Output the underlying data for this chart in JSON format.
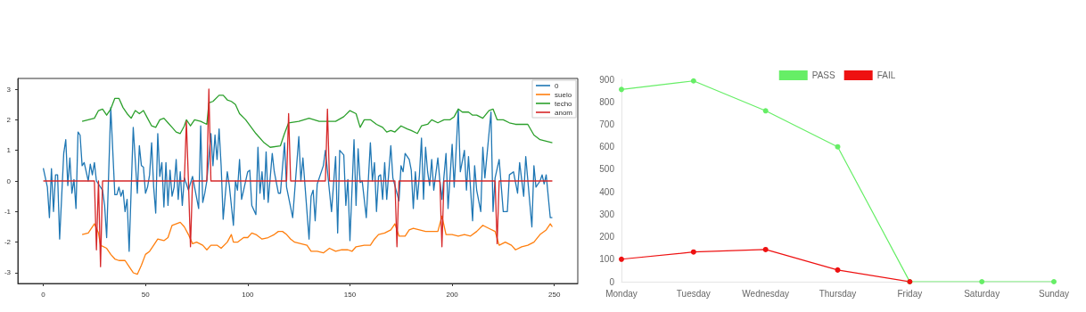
{
  "chart_data": [
    {
      "type": "line",
      "xlim": [
        -12.45,
        261.45
      ],
      "xticks": [
        0,
        50,
        100,
        150,
        200,
        250
      ],
      "ylim": [
        -3.35,
        3.35
      ],
      "yticks": [
        -3,
        -2,
        -1,
        0,
        1,
        2,
        3
      ],
      "grid": false,
      "legend": "top right",
      "marker": "none",
      "series": [
        {
          "name": "0",
          "color": "#1f77b4",
          "x": [
            0,
            2,
            3,
            4,
            5,
            6,
            7,
            8,
            10,
            11,
            12,
            13,
            14,
            15,
            16,
            17,
            18,
            19,
            20,
            22,
            23,
            24,
            25,
            26,
            29,
            30,
            31,
            33,
            35,
            36,
            37,
            38,
            39,
            40,
            41,
            42,
            44,
            46,
            47,
            48,
            49,
            50,
            51,
            52,
            53,
            54,
            55,
            56,
            57,
            58,
            59,
            60,
            61,
            62,
            63,
            64,
            65,
            66,
            67,
            68,
            69,
            71,
            73,
            76,
            77,
            78,
            79,
            80,
            82,
            83,
            84,
            85,
            86,
            87,
            88,
            90,
            91,
            93,
            94,
            95,
            96,
            97,
            98,
            100,
            101,
            102,
            104,
            105,
            106,
            107,
            108,
            109,
            110,
            112,
            113,
            115,
            116,
            118,
            119,
            122,
            125,
            126,
            127,
            130,
            131,
            132,
            133,
            134,
            137,
            138,
            140,
            141,
            143,
            144,
            145,
            147,
            148,
            149,
            150,
            152,
            153,
            154,
            155,
            156,
            158,
            160,
            161,
            162,
            163,
            164,
            165,
            166,
            167,
            168,
            170,
            171,
            174,
            175,
            176,
            177,
            179,
            180,
            181,
            182,
            183,
            184,
            185,
            186,
            187,
            188,
            189,
            190,
            191,
            193,
            194,
            195,
            197,
            198,
            200,
            201,
            203,
            204,
            206,
            207,
            208,
            210,
            211,
            212,
            214,
            215,
            216,
            219,
            220,
            221,
            223,
            225,
            227,
            228,
            230,
            232,
            233,
            235,
            236,
            239,
            240,
            241,
            243,
            244,
            245,
            246,
            248,
            249
          ],
          "values": [
            0.42,
            -0.2,
            -1.2,
            0.4,
            -1.0,
            0.2,
            0.2,
            -1.9,
            0.9,
            1.35,
            -0.15,
            0.75,
            -0.4,
            0.05,
            -0.9,
            1.6,
            1.5,
            0.5,
            0.6,
            0.0,
            0.55,
            0.2,
            0.6,
            0.0,
            -0.3,
            -0.8,
            -1.85,
            2.4,
            -0.45,
            -0.45,
            -0.2,
            -0.5,
            -0.3,
            -1.0,
            -0.6,
            -2.3,
            1.75,
            -0.4,
            1.15,
            0.5,
            0.45,
            -0.4,
            -0.2,
            0.2,
            1.25,
            -0.2,
            -1.05,
            1.55,
            0.15,
            0.6,
            -0.85,
            0.6,
            -0.8,
            0.35,
            -0.5,
            -0.2,
            0.7,
            -0.6,
            0.3,
            -0.8,
            0.1,
            -0.3,
            0.15,
            -0.9,
            1.8,
            -0.7,
            -0.4,
            0.0,
            1.55,
            0.5,
            1.5,
            0.7,
            1.7,
            0.5,
            -1.25,
            0.3,
            -0.15,
            -1.45,
            0.0,
            -0.3,
            0.7,
            -0.6,
            -0.3,
            0.3,
            0.35,
            -0.8,
            -1.1,
            1.1,
            -0.4,
            0.3,
            -0.6,
            0.95,
            -0.7,
            0.9,
            0.3,
            -0.4,
            -0.4,
            1.25,
            -0.2,
            -1.2,
            1.45,
            0.0,
            0.75,
            -1.9,
            -0.5,
            -0.3,
            -1.3,
            -0.1,
            0.5,
            1.0,
            -0.35,
            -1.0,
            0.8,
            -1.7,
            1.0,
            0.85,
            -0.8,
            0.05,
            -1.95,
            1.35,
            -0.8,
            1.05,
            -0.05,
            0.0,
            -1.2,
            1.25,
            0.0,
            0.6,
            -1.0,
            0.15,
            0.2,
            -0.6,
            0.6,
            -0.6,
            1.15,
            0.1,
            -0.65,
            0.5,
            0.3,
            0.9,
            0.7,
            0.35,
            -0.9,
            0.3,
            -0.6,
            0.2,
            1.4,
            -0.6,
            1.1,
            0.3,
            -0.15,
            0.7,
            -0.3,
            0.75,
            0.0,
            -0.6,
            0.9,
            -0.9,
            1.2,
            -0.2,
            2.35,
            0.3,
            1.0,
            -0.3,
            0.8,
            -1.3,
            0.5,
            -0.3,
            -1.0,
            1.1,
            0.1,
            2.25,
            -1.0,
            0.1,
            0.7,
            -1.0,
            -1.0,
            0.2,
            0.3,
            -0.4,
            0.6,
            -0.5,
            0.8,
            -1.5,
            0.5,
            -0.2,
            0.0,
            0.2,
            -0.1,
            0.2,
            -1.2,
            -1.2
          ]
        },
        {
          "name": "suelo",
          "color": "#ff7f0e",
          "x": [
            19,
            22,
            25,
            27,
            28,
            31,
            33,
            35,
            37,
            40,
            42,
            44,
            46,
            48,
            50,
            52,
            54,
            56,
            59,
            61,
            63,
            65,
            67,
            69,
            71,
            73,
            75,
            78,
            80,
            82,
            85,
            87,
            90,
            92,
            93,
            95,
            98,
            100,
            102,
            104,
            107,
            110,
            113,
            115,
            117,
            119,
            121,
            123,
            126,
            129,
            131,
            134,
            137,
            140,
            143,
            146,
            149,
            151,
            153,
            157,
            160,
            162,
            164,
            167,
            170,
            172,
            174,
            177,
            179,
            181,
            184,
            187,
            190,
            193,
            195,
            197,
            200,
            203,
            206,
            209,
            212,
            215,
            218,
            221,
            223,
            226,
            229,
            231,
            234,
            237,
            240,
            243,
            246,
            248,
            249
          ],
          "values": [
            -1.75,
            -1.7,
            -1.4,
            -1.7,
            -2.1,
            -2.2,
            -2.4,
            -2.55,
            -2.6,
            -2.6,
            -2.8,
            -3.0,
            -3.05,
            -2.75,
            -2.4,
            -2.3,
            -2.1,
            -1.9,
            -1.95,
            -1.85,
            -1.45,
            -1.4,
            -1.35,
            -1.5,
            -1.75,
            -2.05,
            -2.0,
            -2.1,
            -2.25,
            -2.1,
            -2.1,
            -2.2,
            -2.0,
            -1.75,
            -2.0,
            -2.0,
            -1.85,
            -1.85,
            -1.7,
            -1.75,
            -1.9,
            -1.85,
            -1.75,
            -1.65,
            -1.65,
            -1.75,
            -1.9,
            -2.0,
            -2.05,
            -2.1,
            -2.3,
            -2.3,
            -2.35,
            -2.2,
            -2.3,
            -2.25,
            -2.25,
            -2.3,
            -2.15,
            -2.1,
            -2.1,
            -1.9,
            -1.75,
            -1.7,
            -1.6,
            -1.4,
            -1.8,
            -1.8,
            -1.6,
            -1.55,
            -1.6,
            -1.65,
            -1.65,
            -1.65,
            -1.15,
            -1.75,
            -1.75,
            -1.8,
            -1.75,
            -1.8,
            -1.65,
            -1.45,
            -1.55,
            -1.65,
            -2.1,
            -2.0,
            -2.1,
            -2.25,
            -2.15,
            -2.1,
            -2.0,
            -1.75,
            -1.6,
            -1.4,
            -1.5
          ]
        },
        {
          "name": "techo",
          "color": "#2ca02c",
          "x": [
            19,
            22,
            25,
            27,
            29,
            31,
            33,
            35,
            37,
            39,
            41,
            43,
            45,
            47,
            49,
            51,
            53,
            55,
            57,
            59,
            61,
            63,
            65,
            67,
            69,
            70,
            72,
            74,
            77,
            80,
            81,
            83,
            86,
            88,
            90,
            92,
            94,
            96,
            99,
            104,
            108,
            111,
            116,
            118,
            120,
            125,
            130,
            135,
            140,
            143,
            147,
            150,
            153,
            155,
            157,
            160,
            163,
            166,
            168,
            170,
            172,
            175,
            178,
            180,
            183,
            185,
            188,
            190,
            193,
            196,
            199,
            201,
            203,
            205,
            208,
            210,
            212,
            215,
            218,
            220,
            222,
            225,
            228,
            231,
            234,
            237,
            240,
            243,
            246,
            249
          ],
          "values": [
            1.95,
            2.0,
            2.05,
            2.3,
            2.35,
            2.15,
            2.35,
            2.7,
            2.7,
            2.4,
            2.2,
            2.05,
            2.3,
            2.2,
            2.3,
            2.05,
            1.8,
            1.75,
            2.0,
            2.05,
            1.9,
            1.75,
            1.6,
            1.55,
            1.8,
            2.0,
            1.8,
            2.0,
            1.95,
            1.85,
            2.55,
            2.6,
            2.8,
            2.8,
            2.65,
            2.6,
            2.5,
            2.2,
            2.0,
            1.55,
            1.25,
            1.1,
            1.15,
            1.55,
            1.9,
            1.95,
            2.05,
            1.95,
            1.95,
            1.95,
            2.1,
            2.3,
            2.2,
            1.75,
            2.0,
            2.0,
            1.85,
            1.75,
            1.6,
            1.65,
            1.6,
            1.8,
            1.7,
            1.65,
            1.55,
            1.8,
            1.85,
            2.0,
            1.9,
            2.0,
            2.0,
            2.1,
            2.35,
            2.25,
            2.25,
            2.15,
            2.15,
            2.05,
            2.3,
            2.35,
            2.0,
            2.0,
            1.9,
            1.85,
            1.85,
            1.85,
            1.5,
            1.35,
            1.3,
            1.25
          ]
        },
        {
          "name": "anom",
          "color": "#d62728",
          "x": [
            0,
            25,
            26,
            27,
            28,
            29,
            69,
            70,
            71,
            72,
            73,
            80,
            81,
            82,
            119,
            120,
            121,
            138,
            139,
            140,
            172,
            173,
            174,
            194,
            195,
            196,
            221,
            222,
            223,
            249
          ],
          "values": [
            0,
            0,
            -2.25,
            0,
            -2.8,
            0,
            0,
            1.95,
            0,
            -2.15,
            0,
            0,
            3.0,
            0,
            0,
            2.2,
            0,
            0,
            2.35,
            0,
            0,
            -2.15,
            0,
            0,
            -2.15,
            0,
            0,
            -2.05,
            0,
            0
          ]
        }
      ]
    },
    {
      "type": "line",
      "categories": [
        "Monday",
        "Tuesday",
        "Wednesday",
        "Thursday",
        "Friday",
        "Saturday",
        "Sunday"
      ],
      "ylim": [
        0,
        900
      ],
      "yticks": [
        0,
        100,
        200,
        300,
        400,
        500,
        600,
        700,
        800,
        900
      ],
      "grid": false,
      "legend": "top",
      "marker": "circle",
      "series": [
        {
          "name": "PASS",
          "color": "#66ee66",
          "values": [
            855,
            893,
            760,
            600,
            0,
            0,
            0
          ]
        },
        {
          "name": "FAIL",
          "color": "#ee1111",
          "values": [
            100,
            132,
            143,
            52,
            0,
            null,
            null
          ]
        }
      ]
    }
  ]
}
